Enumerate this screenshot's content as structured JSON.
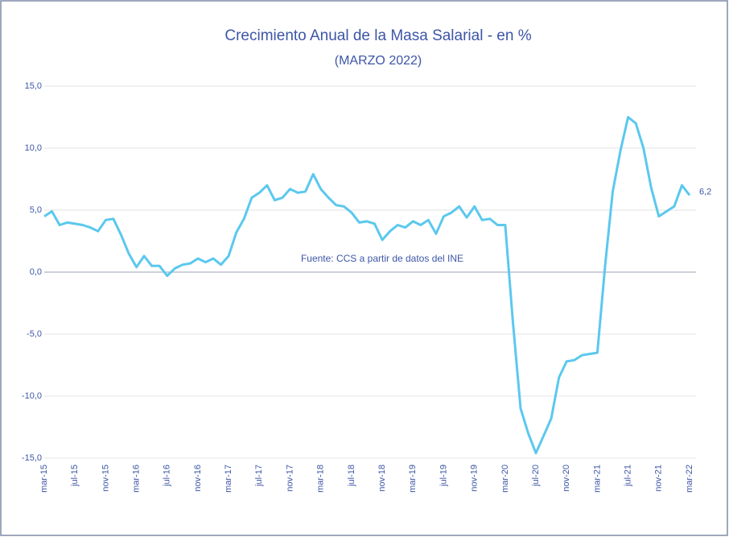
{
  "chart_data": {
    "type": "line",
    "title": "Crecimiento Anual de la Masa Salarial - en %",
    "subtitle": "(MARZO 2022)",
    "annotation": "Fuente: CCS a partir de datos del INE",
    "categories": [
      "mar-15",
      null,
      null,
      null,
      "jul-15",
      null,
      null,
      null,
      "nov-15",
      null,
      null,
      null,
      "mar-16",
      null,
      null,
      null,
      "jul-16",
      null,
      null,
      null,
      "nov-16",
      null,
      null,
      null,
      "mar-17",
      null,
      null,
      null,
      "jul-17",
      null,
      null,
      null,
      "nov-17",
      null,
      null,
      null,
      "mar-18",
      null,
      null,
      null,
      "jul-18",
      null,
      null,
      null,
      "nov-18",
      null,
      null,
      null,
      "mar-19",
      null,
      null,
      null,
      "jul-19",
      null,
      null,
      null,
      "nov-19",
      null,
      null,
      null,
      "mar-20",
      null,
      null,
      null,
      "jul-20",
      null,
      null,
      null,
      "nov-20",
      null,
      null,
      null,
      "mar-21",
      null,
      null,
      null,
      "jul-21",
      null,
      null,
      null,
      "nov-21",
      null,
      null,
      null,
      "mar-22"
    ],
    "series": [
      {
        "color": "#5bc8ee",
        "values": [
          4.5,
          4.9,
          3.8,
          4.0,
          3.9,
          3.8,
          3.6,
          3.3,
          4.2,
          4.3,
          3.0,
          1.5,
          0.4,
          1.3,
          0.5,
          0.5,
          -0.3,
          0.3,
          0.6,
          0.7,
          1.1,
          0.8,
          1.1,
          0.6,
          1.3,
          3.2,
          4.3,
          6.0,
          6.4,
          7.0,
          5.8,
          6.0,
          6.7,
          6.4,
          6.5,
          7.9,
          6.7,
          6.0,
          5.4,
          5.3,
          4.8,
          4.0,
          4.1,
          3.9,
          2.6,
          3.3,
          3.8,
          3.6,
          4.1,
          3.8,
          4.2,
          3.1,
          4.5,
          4.8,
          5.3,
          4.4,
          5.3,
          4.2,
          4.3,
          3.8,
          3.8,
          -4.0,
          -11.0,
          -13.0,
          -14.6,
          -13.2,
          -11.8,
          -8.5,
          -7.2,
          -7.1,
          -6.7,
          -6.6,
          -6.5,
          0.5,
          6.5,
          9.8,
          12.5,
          12.0,
          10.0,
          6.8,
          4.5,
          4.9,
          5.3,
          7.0,
          6.2
        ],
        "value_labels": [
          null,
          null,
          null,
          null,
          null,
          null,
          null,
          null,
          null,
          null,
          null,
          null,
          null,
          null,
          null,
          null,
          null,
          null,
          null,
          null,
          null,
          null,
          null,
          null,
          null,
          null,
          null,
          null,
          null,
          null,
          null,
          null,
          null,
          null,
          null,
          null,
          null,
          null,
          null,
          null,
          null,
          null,
          null,
          null,
          null,
          null,
          null,
          null,
          null,
          null,
          null,
          null,
          null,
          null,
          null,
          null,
          null,
          null,
          null,
          null,
          null,
          null,
          null,
          null,
          null,
          null,
          null,
          null,
          null,
          null,
          null,
          null,
          null,
          null,
          null,
          null,
          null,
          null,
          null,
          null,
          null,
          null,
          null,
          null,
          "6,2"
        ]
      }
    ],
    "ylim": [
      -15,
      15
    ],
    "yticks": [
      {
        "value": 15,
        "label": "15,0"
      },
      {
        "value": 10,
        "label": "10,0"
      },
      {
        "value": 5,
        "label": "5,0"
      },
      {
        "value": 0,
        "label": "0,0"
      },
      {
        "value": -5,
        "label": "-5,0"
      },
      {
        "value": -10,
        "label": "-10,0"
      },
      {
        "value": -15,
        "label": "-15,0"
      }
    ],
    "grid": true
  }
}
